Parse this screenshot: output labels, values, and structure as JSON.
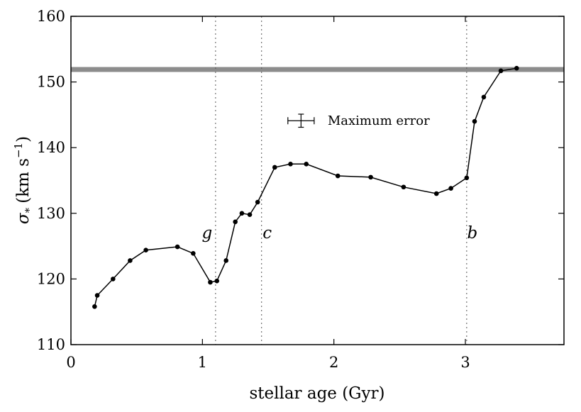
{
  "chart_data": {
    "type": "line",
    "title": "",
    "xlabel": "stellar age (Gyr)",
    "ylabel_main": "σ",
    "ylabel_sub": "*",
    "ylabel_units_open": "(km s",
    "ylabel_units_exp": "−1",
    "ylabel_units_close": ")",
    "xlim": [
      0,
      3.75
    ],
    "ylim": [
      110,
      160
    ],
    "xticks": [
      0,
      1,
      2,
      3
    ],
    "xtick_labels": [
      "0",
      "1",
      "2",
      "3"
    ],
    "yticks": [
      110,
      120,
      130,
      140,
      150,
      160
    ],
    "ytick_labels": [
      "110",
      "120",
      "130",
      "140",
      "150",
      "160"
    ],
    "grid": false,
    "series": [
      {
        "x": [
          0.18,
          0.2,
          0.32,
          0.45,
          0.57,
          0.81,
          0.93,
          1.06,
          1.11,
          1.18,
          1.25,
          1.3,
          1.36,
          1.42,
          1.55,
          1.67,
          1.79,
          2.03,
          2.28,
          2.53,
          2.78,
          2.89,
          3.01,
          3.07,
          3.14,
          3.27,
          3.39
        ],
        "y": [
          115.8,
          117.5,
          120.0,
          122.8,
          124.4,
          124.9,
          123.9,
          119.5,
          119.7,
          122.8,
          128.7,
          130.0,
          129.8,
          131.7,
          137.0,
          137.5,
          137.5,
          135.7,
          135.5,
          134.0,
          133.0,
          133.8,
          135.4,
          144.0,
          147.7,
          151.7,
          152.1
        ],
        "color": "#000000"
      }
    ],
    "reference_line": {
      "y": 151.9,
      "color": "#8c8c8c"
    },
    "vlines": [
      {
        "x": 1.1,
        "label": "g"
      },
      {
        "x": 1.45,
        "label": "c"
      },
      {
        "x": 3.01,
        "label": "b"
      }
    ],
    "legend": {
      "text": "Maximum error",
      "placement": "upper-center",
      "err_x": 0.1,
      "err_y": 1.0,
      "center_x": 1.75,
      "center_y": 144.1
    }
  }
}
